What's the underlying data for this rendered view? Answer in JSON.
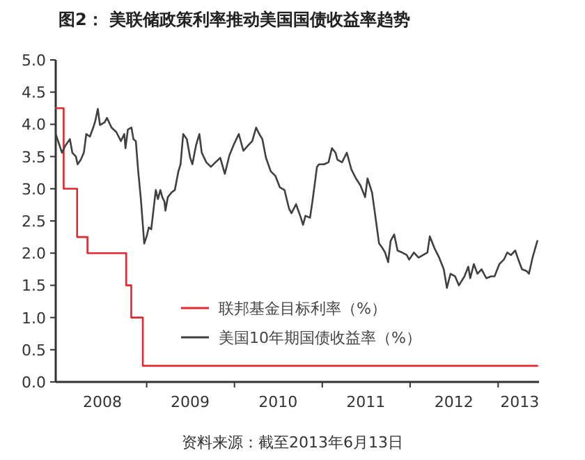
{
  "chart_data": {
    "type": "line",
    "title": "图2： 美联储政策利率推动美国国债收益率趋势",
    "annotations": [
      "资料来源：截至2013年6月13日"
    ],
    "xlim": [
      "2007-12-20",
      "2013-06-20"
    ],
    "xticks": [
      {
        "value": "2008-07-01",
        "label": "2008"
      },
      {
        "value": "2009-01-01",
        "label": null
      },
      {
        "value": "2009-07-01",
        "label": "2009"
      },
      {
        "value": "2010-01-01",
        "label": null
      },
      {
        "value": "2010-07-01",
        "label": "2010"
      },
      {
        "value": "2011-01-01",
        "label": null
      },
      {
        "value": "2011-07-01",
        "label": "2011"
      },
      {
        "value": "2012-01-01",
        "label": null
      },
      {
        "value": "2012-07-01",
        "label": "2012"
      },
      {
        "value": "2013-01-01",
        "label": null
      },
      {
        "value": "2013-04-01",
        "label": "2013"
      }
    ],
    "ylim": [
      0,
      5
    ],
    "yticks": [
      {
        "value": 0,
        "label": "0.0"
      },
      {
        "value": 0.5,
        "label": "0.5"
      },
      {
        "value": 1,
        "label": "1.0"
      },
      {
        "value": 1.5,
        "label": "1.5"
      },
      {
        "value": 2,
        "label": "2.0"
      },
      {
        "value": 2.5,
        "label": "2.5"
      },
      {
        "value": 3,
        "label": "3.0"
      },
      {
        "value": 3.5,
        "label": "3.5"
      },
      {
        "value": 4,
        "label": "4.0"
      },
      {
        "value": 4.5,
        "label": "4.5"
      },
      {
        "value": 5,
        "label": "5.0"
      }
    ],
    "grid": false,
    "legend": "bottom",
    "marker": "none",
    "line_style": "solid",
    "series": [
      {
        "name": "联邦基金目标利率（%）",
        "type": "step",
        "color": "#e0282e",
        "x": [
          "2007-12-20",
          "2008-01-22",
          "2008-03-18",
          "2008-04-30",
          "2008-10-08",
          "2008-10-29",
          "2008-12-16",
          "2013-06-13"
        ],
        "values": [
          4.25,
          3.0,
          2.25,
          2.0,
          1.5,
          1.0,
          0.25,
          0.25
        ]
      },
      {
        "name": "美国10年期国债收益率（%）",
        "type": "line",
        "color": "#404040",
        "x": [
          "2007-12-20",
          "2008-01-15",
          "2008-01-29",
          "2008-02-17",
          "2008-02-27",
          "2008-03-13",
          "2008-03-20",
          "2008-04-02",
          "2008-04-15",
          "2008-04-25",
          "2008-05-10",
          "2008-05-24",
          "2008-06-02",
          "2008-06-12",
          "2008-06-21",
          "2008-07-10",
          "2008-07-20",
          "2008-08-08",
          "2008-08-28",
          "2008-09-16",
          "2008-09-30",
          "2008-10-05",
          "2008-10-15",
          "2008-10-30",
          "2008-11-07",
          "2008-11-17",
          "2008-11-27",
          "2008-12-08",
          "2008-12-22",
          "2009-01-01",
          "2009-01-10",
          "2009-01-20",
          "2009-02-08",
          "2009-02-17",
          "2009-02-27",
          "2009-03-07",
          "2009-03-16",
          "2009-03-20",
          "2009-03-30",
          "2009-04-14",
          "2009-04-28",
          "2009-05-13",
          "2009-05-22",
          "2009-06-02",
          "2009-06-17",
          "2009-07-01",
          "2009-07-10",
          "2009-07-25",
          "2009-08-08",
          "2009-08-18",
          "2009-09-06",
          "2009-09-25",
          "2009-10-14",
          "2009-11-03",
          "2009-11-22",
          "2009-12-11",
          "2009-12-31",
          "2010-01-19",
          "2010-02-07",
          "2010-02-26",
          "2010-03-16",
          "2010-04-01",
          "2010-04-14",
          "2010-04-27",
          "2010-05-12",
          "2010-06-01",
          "2010-06-20",
          "2010-07-09",
          "2010-07-28",
          "2010-08-16",
          "2010-08-26",
          "2010-09-14",
          "2010-10-04",
          "2010-10-13",
          "2010-10-23",
          "2010-11-11",
          "2010-11-21",
          "2010-12-10",
          "2010-12-19",
          "2011-01-08",
          "2011-01-27",
          "2011-02-10",
          "2011-02-25",
          "2011-03-05",
          "2011-03-24",
          "2011-04-13",
          "2011-05-02",
          "2011-05-21",
          "2011-06-09",
          "2011-06-28",
          "2011-07-08",
          "2011-07-27",
          "2011-08-16",
          "2011-08-25",
          "2011-09-08",
          "2011-09-19",
          "2011-10-02",
          "2011-10-12",
          "2011-10-27",
          "2011-11-10",
          "2011-11-29",
          "2011-12-18",
          "2011-12-28",
          "2012-01-17",
          "2012-02-05",
          "2012-02-24",
          "2012-03-13",
          "2012-03-23",
          "2012-04-11",
          "2012-05-01",
          "2012-05-20",
          "2012-06-02",
          "2012-06-17",
          "2012-07-06",
          "2012-07-22",
          "2012-08-14",
          "2012-08-30",
          "2012-09-07",
          "2012-09-22",
          "2012-10-07",
          "2012-10-24",
          "2012-11-13",
          "2012-12-02",
          "2012-12-17",
          "2013-01-06",
          "2013-01-25",
          "2013-02-08",
          "2013-02-23",
          "2013-03-13",
          "2013-03-26",
          "2013-04-10",
          "2013-04-30",
          "2013-05-09",
          "2013-05-24",
          "2013-06-13"
        ],
        "values": [
          3.85,
          3.56,
          3.67,
          3.77,
          3.56,
          3.5,
          3.38,
          3.45,
          3.56,
          3.85,
          3.81,
          3.95,
          4.06,
          4.24,
          3.99,
          4.03,
          4.1,
          3.95,
          3.88,
          3.74,
          3.85,
          3.63,
          3.92,
          3.95,
          3.77,
          3.74,
          3.27,
          2.84,
          2.15,
          2.26,
          2.4,
          2.37,
          2.98,
          2.84,
          2.98,
          2.87,
          2.8,
          2.66,
          2.87,
          2.94,
          2.98,
          3.27,
          3.38,
          3.85,
          3.77,
          3.48,
          3.38,
          3.67,
          3.85,
          3.56,
          3.41,
          3.34,
          3.41,
          3.48,
          3.23,
          3.52,
          3.7,
          3.85,
          3.59,
          3.67,
          3.74,
          3.95,
          3.85,
          3.77,
          3.48,
          3.27,
          3.2,
          3.02,
          2.98,
          2.69,
          2.62,
          2.76,
          2.55,
          2.44,
          2.58,
          2.55,
          2.8,
          3.34,
          3.38,
          3.38,
          3.41,
          3.63,
          3.56,
          3.45,
          3.41,
          3.56,
          3.3,
          3.16,
          3.05,
          2.87,
          3.16,
          2.94,
          2.4,
          2.15,
          2.08,
          2.01,
          1.86,
          2.19,
          2.29,
          2.04,
          2.01,
          1.97,
          1.9,
          2.01,
          1.93,
          1.97,
          2.01,
          2.26,
          2.08,
          1.93,
          1.75,
          1.46,
          1.68,
          1.64,
          1.5,
          1.64,
          1.79,
          1.61,
          1.83,
          1.68,
          1.75,
          1.61,
          1.64,
          1.64,
          1.83,
          1.9,
          2.01,
          1.97,
          2.04,
          1.9,
          1.75,
          1.72,
          1.68,
          1.93,
          2.19
        ]
      }
    ]
  }
}
